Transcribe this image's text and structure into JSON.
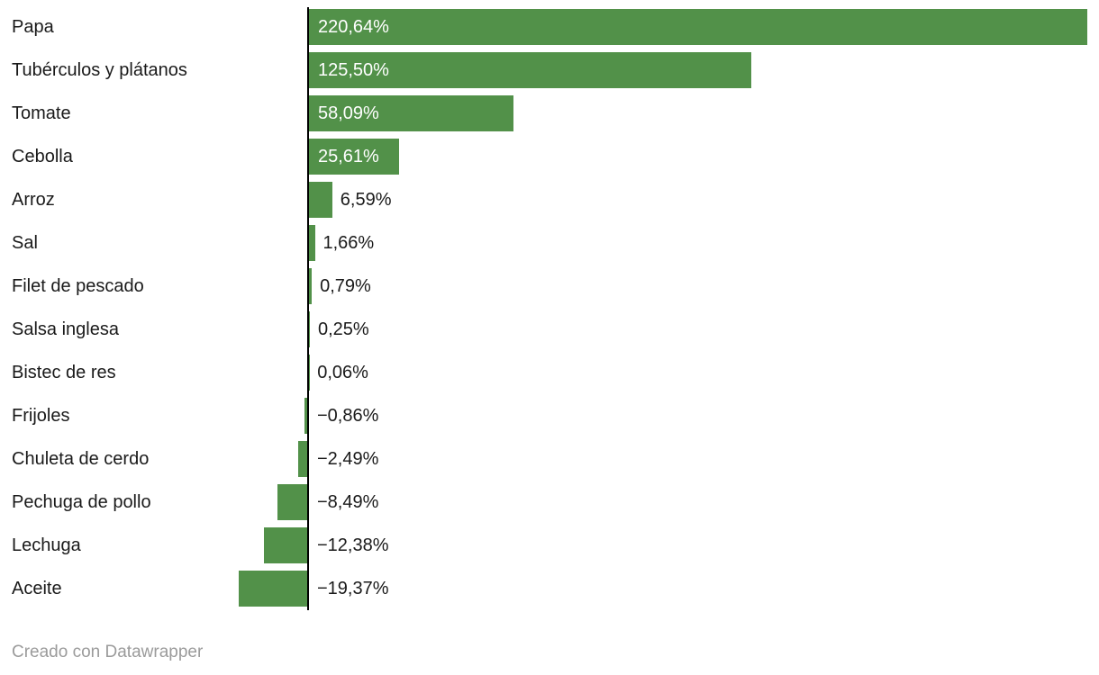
{
  "chart_data": {
    "type": "bar",
    "orientation": "horizontal",
    "categories": [
      "Papa",
      "Tubérculos y plátanos",
      "Tomate",
      "Cebolla",
      "Arroz",
      "Sal",
      "Filet de pescado",
      "Salsa inglesa",
      "Bistec de res",
      "Frijoles",
      "Chuleta de cerdo",
      "Pechuga de pollo",
      "Lechuga",
      "Aceite"
    ],
    "values": [
      220.64,
      125.5,
      58.09,
      25.61,
      6.59,
      1.66,
      0.79,
      0.25,
      0.06,
      -0.86,
      -2.49,
      -8.49,
      -12.38,
      -19.37
    ],
    "value_labels": [
      "220,64%",
      "125,50%",
      "58,09%",
      "25,61%",
      "6,59%",
      "1,66%",
      "0,79%",
      "0,25%",
      "0,06%",
      "−0,86%",
      "−2,49%",
      "−8,49%",
      "−12,38%",
      "−19,37%"
    ],
    "title": "",
    "xlabel": "",
    "ylabel": "",
    "xlim": [
      -22,
      221
    ],
    "grid": false,
    "legend": false,
    "bar_color": "#529149",
    "axis_color": "#000000",
    "label_color": "#1a1a1a",
    "inside_label_color": "#ffffff"
  },
  "footer": {
    "text": "Creado con Datawrapper"
  }
}
